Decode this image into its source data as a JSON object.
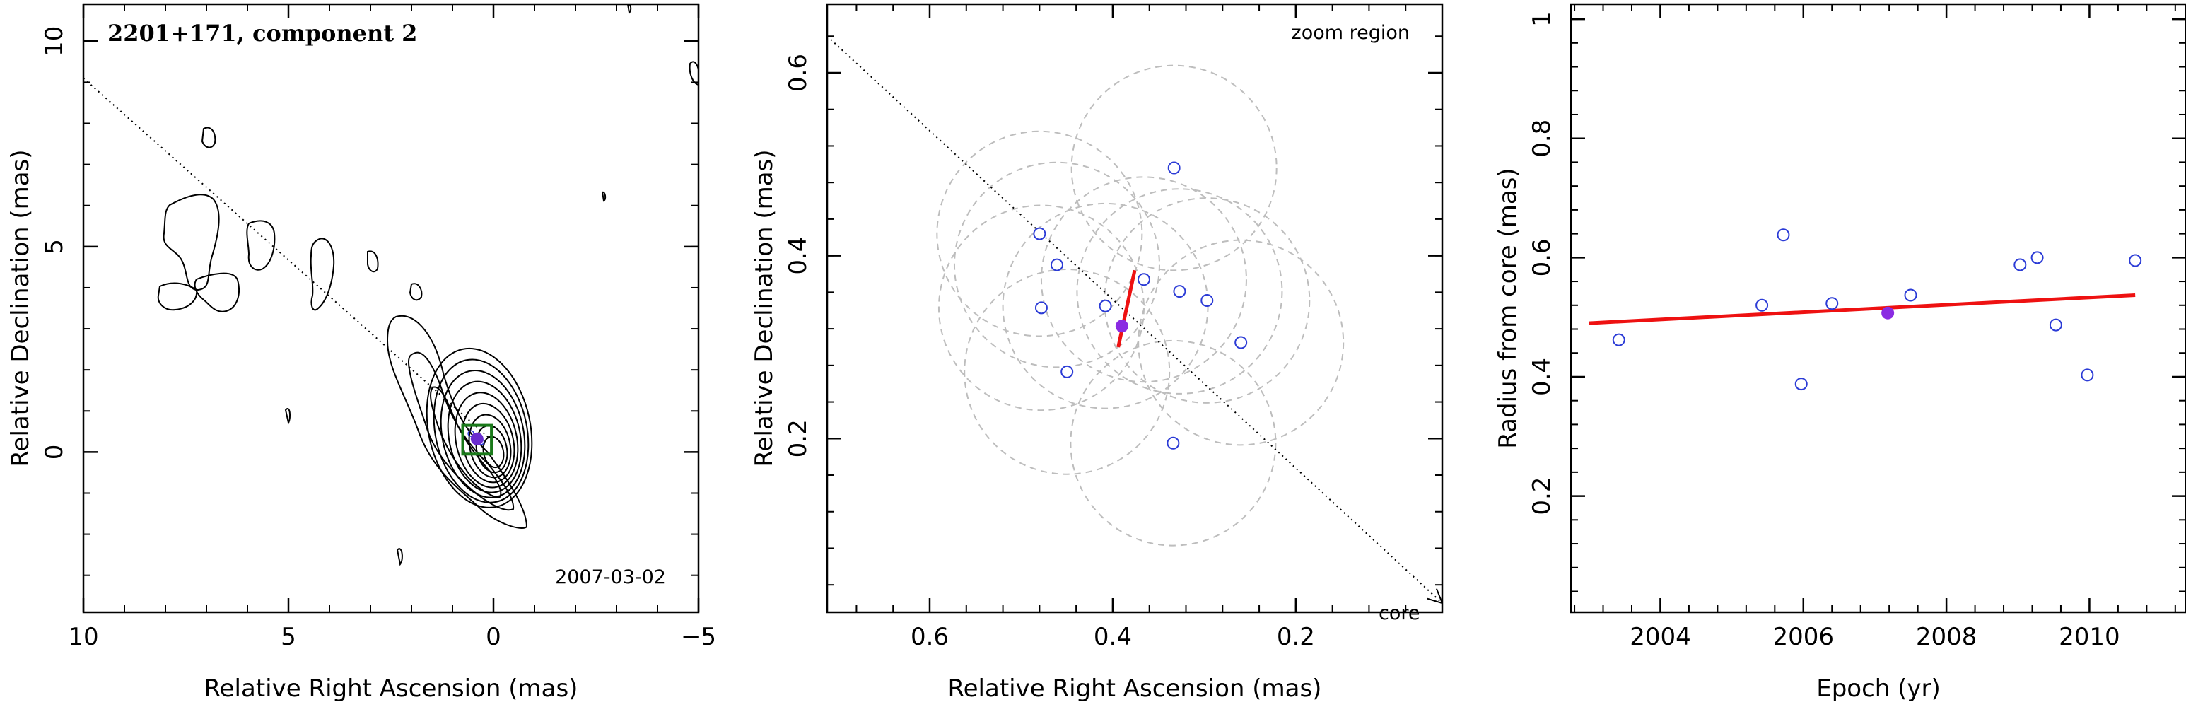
{
  "chart_data": [
    {
      "type": "contour",
      "title": "2201+171, component 2",
      "date_label": "2007-03-02",
      "xlabel": "Relative Right Ascension (mas)",
      "ylabel": "Relative Declination (mas)",
      "xlim": [
        10,
        -5
      ],
      "ylim": [
        -3.9,
        10.9
      ],
      "xticks": [
        10,
        5,
        0,
        -5
      ],
      "yticks": [
        0,
        5,
        10
      ],
      "jet_axis": {
        "x1": 10,
        "y1": 9.1,
        "x2": 0,
        "y2": 0.25
      },
      "component": {
        "x": 0.4,
        "y": 0.32
      },
      "zoom_box": {
        "x": [
          0.75,
          0.05
        ],
        "y": [
          -0.05,
          0.65
        ]
      },
      "core_contours": {
        "center": [
          0,
          0
        ],
        "levels": 9
      },
      "colors": {
        "contour": "#000000",
        "component": "#6a2ccf",
        "box": "#1a7a1a",
        "axis_line": "#000000"
      }
    },
    {
      "type": "scatter",
      "annotation": "zoom region",
      "core_label": "core",
      "xlabel": "Relative Right Ascension (mas)",
      "ylabel": "Relative Declination (mas)",
      "xlim": [
        0.712,
        0.04
      ],
      "ylim": [
        0.01,
        0.675
      ],
      "xticks": [
        0.6,
        0.4,
        0.2
      ],
      "yticks": [
        0.2,
        0.4,
        0.6
      ],
      "jet_axis": {
        "x1": 0.712,
        "y1": 0.64,
        "x2": 0.04,
        "y2": 0.02
      },
      "points": [
        {
          "x": 0.333,
          "y": 0.496
        },
        {
          "x": 0.48,
          "y": 0.424
        },
        {
          "x": 0.461,
          "y": 0.39
        },
        {
          "x": 0.366,
          "y": 0.374
        },
        {
          "x": 0.327,
          "y": 0.361
        },
        {
          "x": 0.297,
          "y": 0.351
        },
        {
          "x": 0.408,
          "y": 0.345
        },
        {
          "x": 0.478,
          "y": 0.343
        },
        {
          "x": 0.26,
          "y": 0.305
        },
        {
          "x": 0.45,
          "y": 0.273
        },
        {
          "x": 0.334,
          "y": 0.195
        }
      ],
      "circles": [
        {
          "x": 0.333,
          "y": 0.496,
          "r": 0.112
        },
        {
          "x": 0.48,
          "y": 0.424,
          "r": 0.112
        },
        {
          "x": 0.461,
          "y": 0.39,
          "r": 0.112
        },
        {
          "x": 0.366,
          "y": 0.374,
          "r": 0.112
        },
        {
          "x": 0.327,
          "y": 0.361,
          "r": 0.112
        },
        {
          "x": 0.297,
          "y": 0.351,
          "r": 0.112
        },
        {
          "x": 0.408,
          "y": 0.345,
          "r": 0.112
        },
        {
          "x": 0.478,
          "y": 0.343,
          "r": 0.112
        },
        {
          "x": 0.26,
          "y": 0.305,
          "r": 0.112
        },
        {
          "x": 0.45,
          "y": 0.273,
          "r": 0.112
        },
        {
          "x": 0.334,
          "y": 0.195,
          "r": 0.112
        }
      ],
      "mean_point": {
        "x": 0.39,
        "y": 0.323
      },
      "error_segment": {
        "x1": 0.376,
        "y1": 0.384,
        "x2": 0.394,
        "y2": 0.3
      },
      "colors": {
        "points": "#2b3bd6",
        "circles": "#bdbdbd",
        "mean": "#8a2be2",
        "segment": "#ee1111"
      }
    },
    {
      "type": "scatter",
      "xlabel": "Epoch (yr)",
      "ylabel": "Radius from core (mas)",
      "xlim": [
        2002.75,
        2011.35
      ],
      "ylim": [
        0.005,
        1.025
      ],
      "xticks": [
        2004,
        2006,
        2008,
        2010
      ],
      "yticks": [
        0.2,
        0.4,
        0.6,
        0.8,
        1
      ],
      "points": [
        {
          "x": 2003.42,
          "y": 0.462
        },
        {
          "x": 2005.42,
          "y": 0.52
        },
        {
          "x": 2005.72,
          "y": 0.638
        },
        {
          "x": 2005.97,
          "y": 0.388
        },
        {
          "x": 2006.4,
          "y": 0.523
        },
        {
          "x": 2007.5,
          "y": 0.537
        },
        {
          "x": 2009.03,
          "y": 0.588
        },
        {
          "x": 2009.27,
          "y": 0.6
        },
        {
          "x": 2009.53,
          "y": 0.487
        },
        {
          "x": 2009.97,
          "y": 0.403
        },
        {
          "x": 2010.64,
          "y": 0.595
        }
      ],
      "mean_point": {
        "x": 2007.18,
        "y": 0.507
      },
      "fit_line": {
        "x": [
          2003.0,
          2010.64
        ],
        "y": [
          0.49,
          0.537
        ]
      },
      "colors": {
        "points": "#2b3bd6",
        "mean": "#8a2be2",
        "fit": "#ee1111"
      }
    }
  ]
}
